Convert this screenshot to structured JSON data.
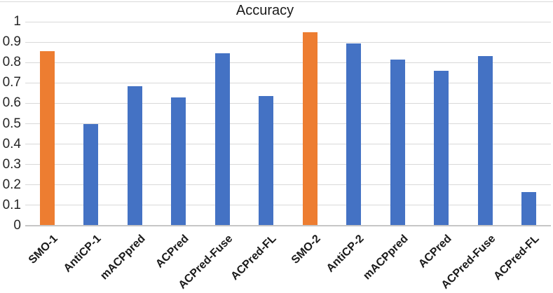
{
  "figure": {
    "title": "Accuracy"
  },
  "chart_data": {
    "type": "bar",
    "title": "Accuracy",
    "xlabel": "",
    "ylabel": "",
    "categories": [
      "SMO-1",
      "AntiCP-1",
      "mACPpred",
      "ACPred",
      "ACPred-Fuse",
      "ACPred-FL",
      "SMO-2",
      "AntiCP-2",
      "mACPpred",
      "ACPred",
      "ACPred-Fuse",
      "ACPred-FL"
    ],
    "values": [
      0.855,
      0.5,
      0.685,
      0.63,
      0.845,
      0.635,
      0.95,
      0.895,
      0.815,
      0.76,
      0.83,
      0.165
    ],
    "bar_colors": [
      "#ED7D31",
      "#4472C4",
      "#4472C4",
      "#4472C4",
      "#4472C4",
      "#4472C4",
      "#ED7D31",
      "#4472C4",
      "#4472C4",
      "#4472C4",
      "#4472C4",
      "#4472C4"
    ],
    "highlight_color": "#ED7D31",
    "series_color": "#4472C4",
    "ylim": [
      0,
      1
    ],
    "yticks": [
      0,
      0.1,
      0.2,
      0.3,
      0.4,
      0.5,
      0.6,
      0.7,
      0.8,
      0.9,
      1
    ],
    "ytick_labels": [
      "0",
      "0.1",
      "0.2",
      "0.3",
      "0.4",
      "0.5",
      "0.6",
      "0.7",
      "0.8",
      "0.9",
      "1"
    ],
    "grid": true,
    "gridline_color": "#d9d9d9",
    "axis_line_color": "#c6c6c6",
    "legend": "none",
    "xlabel_rotation_deg": 45
  }
}
